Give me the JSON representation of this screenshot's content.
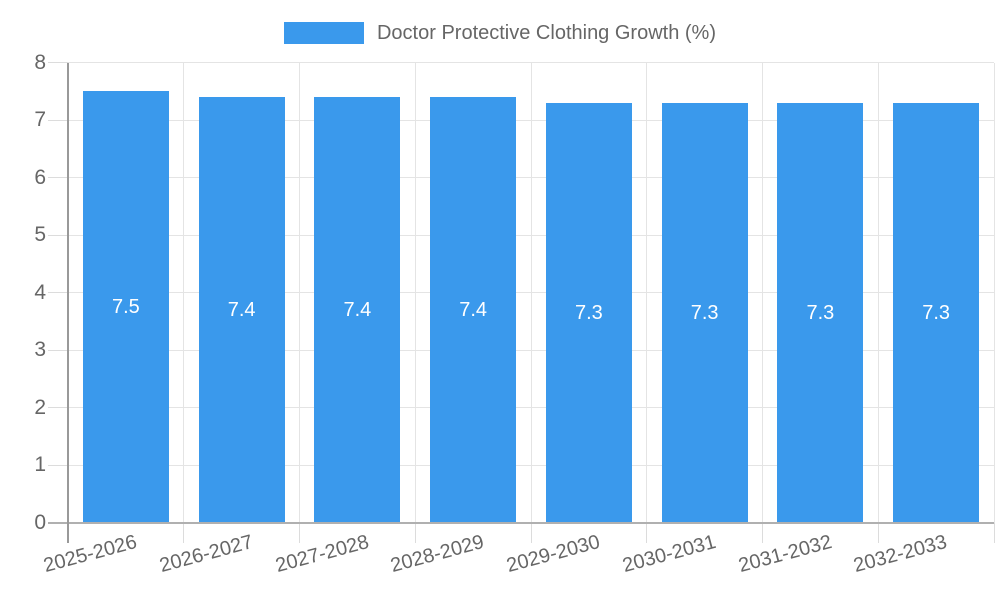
{
  "legend": {
    "items": [
      {
        "label": "Doctor Protective Clothing Growth (%)",
        "color": "#3a99ec"
      }
    ],
    "position": "top"
  },
  "chart_data": {
    "type": "bar",
    "title": "Doctor Protective Clothing Growth (%)",
    "categories": [
      "2025-2026",
      "2026-2027",
      "2027-2028",
      "2028-2029",
      "2029-2030",
      "2030-2031",
      "2031-2032",
      "2032-2033"
    ],
    "values": [
      7.5,
      7.4,
      7.4,
      7.4,
      7.3,
      7.3,
      7.3,
      7.3
    ],
    "value_labels": [
      "7.5",
      "7.4",
      "7.4",
      "7.4",
      "7.3",
      "7.3",
      "7.3",
      "7.3"
    ],
    "xlabel": "",
    "ylabel": "",
    "ylim": [
      0,
      8
    ],
    "yticks": [
      0,
      1,
      2,
      3,
      4,
      5,
      6,
      7,
      8
    ],
    "grid": true,
    "legend_position": "top",
    "x_label_rotation_deg": -15,
    "bar_color": "#3a99ec",
    "value_label_color": "#ffffff"
  },
  "colors": {
    "background": "#ffffff",
    "grid": "#e4e4e4",
    "tick": "#dcdcdc",
    "x_axis": "#b0b0b0",
    "y_axis": "#999999",
    "tick_text": "#666666"
  }
}
